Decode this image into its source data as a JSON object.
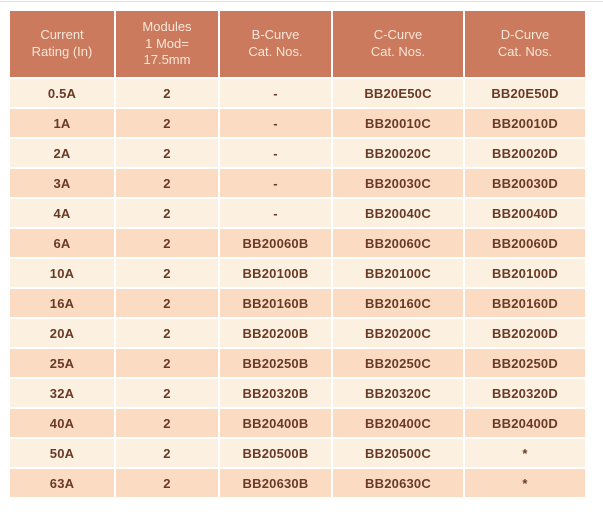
{
  "colors": {
    "header_background": "#cb7a5d",
    "header_text": "#f8e6d8",
    "row_light": "#fcf0e0",
    "row_dark": "#fbdcc2",
    "body_text": "#693a25",
    "page_background": "#ffffff",
    "separator": "#ffffff"
  },
  "table": {
    "columns": [
      {
        "key": "current_rating",
        "label": "Current\nRating (In)"
      },
      {
        "key": "modules",
        "label": "Modules\n1 Mod=\n17.5mm"
      },
      {
        "key": "b_curve",
        "label": "B-Curve\nCat. Nos."
      },
      {
        "key": "c_curve",
        "label": "C-Curve\nCat. Nos."
      },
      {
        "key": "d_curve",
        "label": "D-Curve\nCat. Nos."
      }
    ],
    "rows": [
      {
        "current_rating": "0.5A",
        "modules": "2",
        "b_curve": "-",
        "c_curve": "BB20E50C",
        "d_curve": "BB20E50D"
      },
      {
        "current_rating": "1A",
        "modules": "2",
        "b_curve": "-",
        "c_curve": "BB20010C",
        "d_curve": "BB20010D"
      },
      {
        "current_rating": "2A",
        "modules": "2",
        "b_curve": "-",
        "c_curve": "BB20020C",
        "d_curve": "BB20020D"
      },
      {
        "current_rating": "3A",
        "modules": "2",
        "b_curve": "-",
        "c_curve": "BB20030C",
        "d_curve": "BB20030D"
      },
      {
        "current_rating": "4A",
        "modules": "2",
        "b_curve": "-",
        "c_curve": "BB20040C",
        "d_curve": "BB20040D"
      },
      {
        "current_rating": "6A",
        "modules": "2",
        "b_curve": "BB20060B",
        "c_curve": "BB20060C",
        "d_curve": "BB20060D"
      },
      {
        "current_rating": "10A",
        "modules": "2",
        "b_curve": "BB20100B",
        "c_curve": "BB20100C",
        "d_curve": "BB20100D"
      },
      {
        "current_rating": "16A",
        "modules": "2",
        "b_curve": "BB20160B",
        "c_curve": "BB20160C",
        "d_curve": "BB20160D"
      },
      {
        "current_rating": "20A",
        "modules": "2",
        "b_curve": "BB20200B",
        "c_curve": "BB20200C",
        "d_curve": "BB20200D"
      },
      {
        "current_rating": "25A",
        "modules": "2",
        "b_curve": "BB20250B",
        "c_curve": "BB20250C",
        "d_curve": "BB20250D"
      },
      {
        "current_rating": "32A",
        "modules": "2",
        "b_curve": "BB20320B",
        "c_curve": "BB20320C",
        "d_curve": "BB20320D"
      },
      {
        "current_rating": "40A",
        "modules": "2",
        "b_curve": "BB20400B",
        "c_curve": "BB20400C",
        "d_curve": "BB20400D"
      },
      {
        "current_rating": "50A",
        "modules": "2",
        "b_curve": "BB20500B",
        "c_curve": "BB20500C",
        "d_curve": "*"
      },
      {
        "current_rating": "63A",
        "modules": "2",
        "b_curve": "BB20630B",
        "c_curve": "BB20630C",
        "d_curve": "*"
      }
    ]
  }
}
